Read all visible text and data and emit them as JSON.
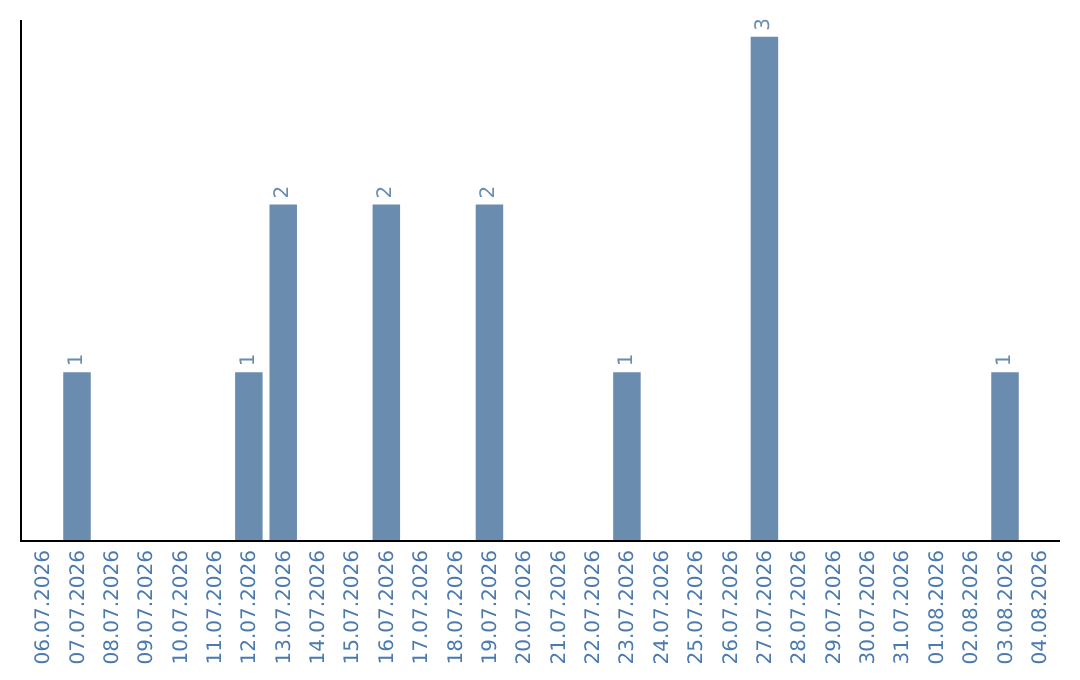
{
  "chart_data": {
    "type": "bar",
    "categories": [
      "06.07.2026",
      "07.07.2026",
      "08.07.2026",
      "09.07.2026",
      "10.07.2026",
      "11.07.2026",
      "12.07.2026",
      "13.07.2026",
      "14.07.2026",
      "15.07.2026",
      "16.07.2026",
      "17.07.2026",
      "18.07.2026",
      "19.07.2026",
      "20.07.2026",
      "21.07.2026",
      "22.07.2026",
      "23.07.2026",
      "24.07.2026",
      "25.07.2026",
      "26.07.2026",
      "27.07.2026",
      "28.07.2026",
      "29.07.2026",
      "30.07.2026",
      "31.07.2026",
      "01.08.2026",
      "02.08.2026",
      "03.08.2026",
      "04.08.2026"
    ],
    "values": [
      0,
      1,
      0,
      0,
      0,
      0,
      1,
      2,
      0,
      0,
      2,
      0,
      0,
      2,
      0,
      0,
      0,
      1,
      0,
      0,
      0,
      3,
      0,
      0,
      0,
      0,
      0,
      0,
      1,
      0
    ],
    "value_labels": [
      null,
      "1",
      null,
      null,
      null,
      null,
      "1",
      "2",
      null,
      null,
      "2",
      null,
      null,
      "2",
      null,
      null,
      null,
      "1",
      null,
      null,
      null,
      "3",
      null,
      null,
      null,
      null,
      null,
      null,
      "1",
      null
    ],
    "color": "#6a8caf",
    "ylim": [
      0,
      3.1
    ],
    "tick_labels": "x"
  }
}
